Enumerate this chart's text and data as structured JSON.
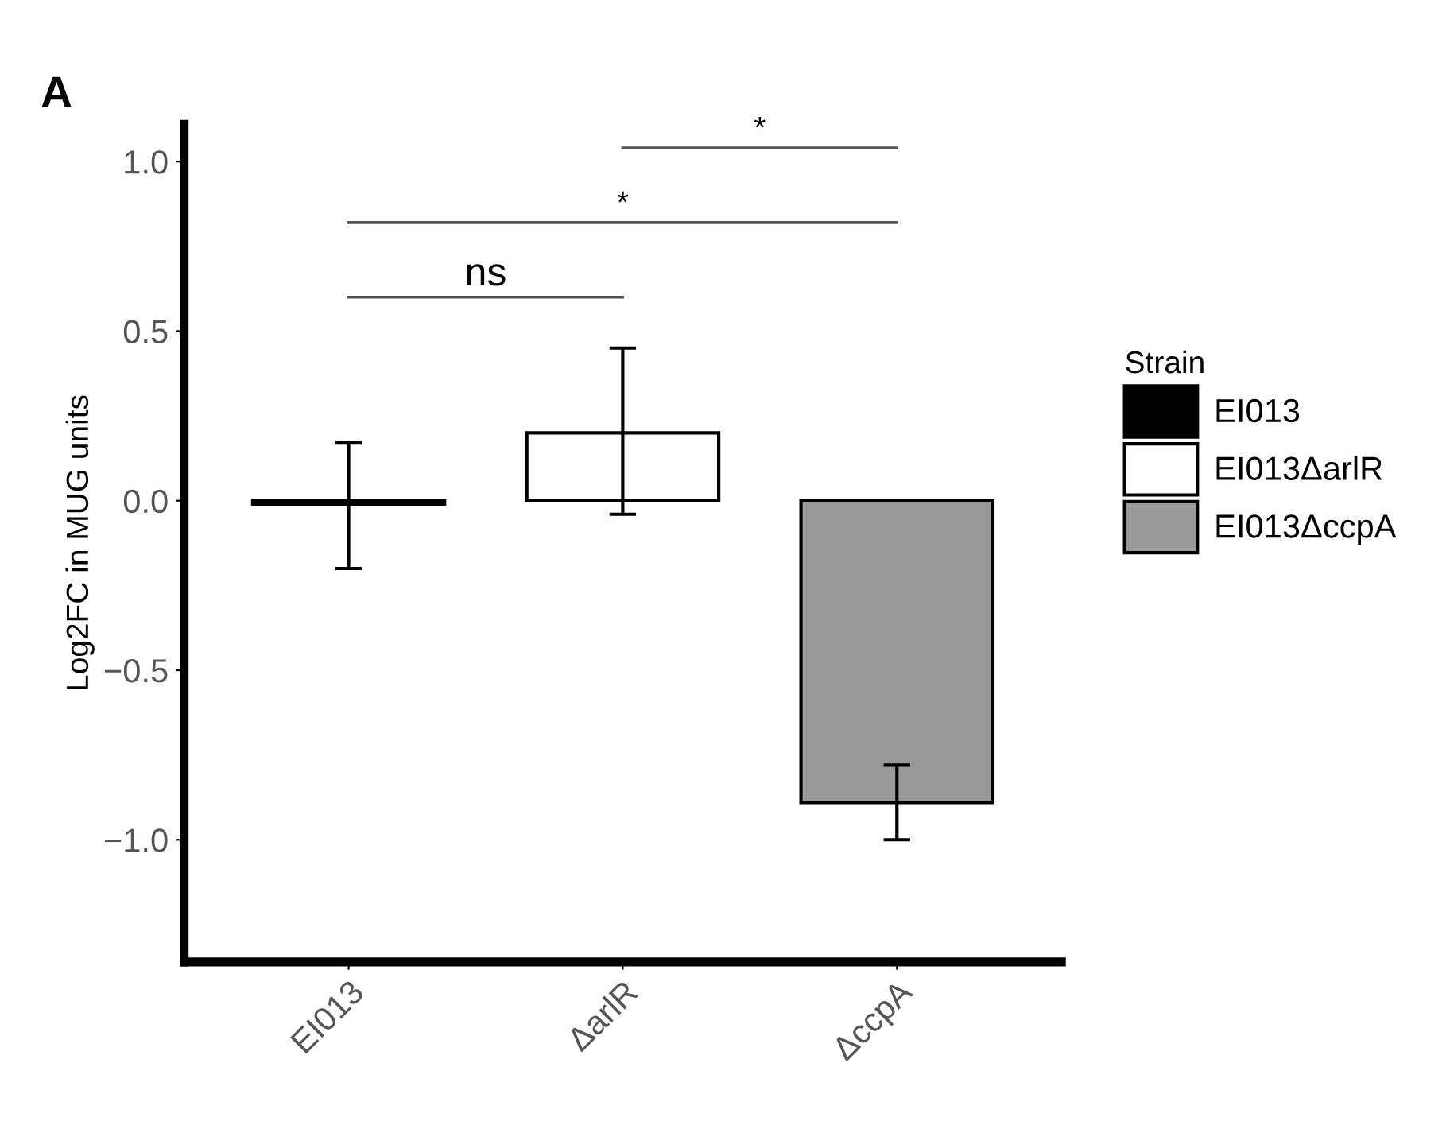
{
  "chart_data": {
    "type": "bar",
    "title": "A",
    "ylabel": "Log2FC in MUG units",
    "legend_title": "Strain",
    "categories": [
      "EI013",
      "ΔarlR",
      "ΔccpA"
    ],
    "series": [
      {
        "name": "EI013",
        "color": "#000000",
        "values": [
          -0.01,
          null,
          null
        ],
        "errors": [
          [
            -0.2,
            0.17
          ],
          null,
          null
        ]
      },
      {
        "name": "EI013ΔarlR",
        "color": "#ffffff",
        "values": [
          null,
          0.2,
          null
        ],
        "errors": [
          null,
          [
            -0.04,
            0.45
          ],
          null
        ]
      },
      {
        "name": "EI013ΔccpA",
        "color": "#999999",
        "values": [
          null,
          null,
          -0.89
        ],
        "errors": [
          null,
          null,
          [
            -1.0,
            -0.78
          ]
        ]
      }
    ],
    "annotations": [
      "ns",
      "*",
      "*"
    ],
    "ylim": [
      -1.36,
      1.11
    ],
    "yticks": [
      {
        "value": 1.0,
        "label": "1.0"
      },
      {
        "value": 0.5,
        "label": "0.5"
      },
      {
        "value": 0.0,
        "label": "0.0"
      },
      {
        "value": -0.5,
        "label": "−0.5"
      },
      {
        "value": -1.0,
        "label": "−1.0"
      }
    ],
    "grid": false,
    "legend": "right"
  }
}
